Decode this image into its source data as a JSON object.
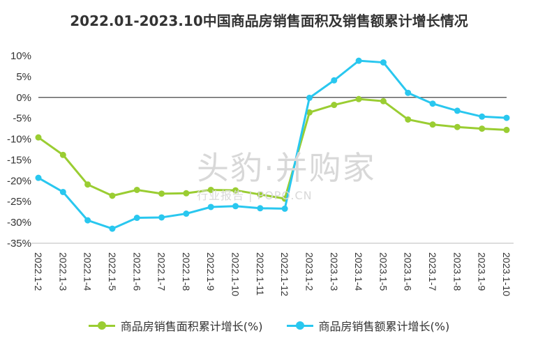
{
  "chart_data": {
    "type": "line",
    "title": "2022.01-2023.10中国商品房销售面积及销售额累计增长情况",
    "categories": [
      "2022.1-2",
      "2022.1-3",
      "2022.1-4",
      "2022.1-5",
      "2022.1-6",
      "2022.1-7",
      "2022.1-8",
      "2022.1-9",
      "2022.1-10",
      "2022.1-11",
      "2022.1-12",
      "2023.1-2",
      "2023.1-3",
      "2023.1-4",
      "2023.1-5",
      "2023.1-6",
      "2023.1-7",
      "2023.1-8",
      "2023.1-9",
      "2023.1-10"
    ],
    "series": [
      {
        "name": "商品房销售面积累计增长(%)",
        "color": "#9acd32",
        "values": [
          -9.6,
          -13.8,
          -20.9,
          -23.6,
          -22.2,
          -23.1,
          -23.0,
          -22.2,
          -22.3,
          -23.3,
          -24.3,
          -3.6,
          -1.8,
          -0.4,
          -0.9,
          -5.3,
          -6.5,
          -7.1,
          -7.5,
          -7.8
        ]
      },
      {
        "name": "商品房销售额累计增长(%)",
        "color": "#29c7ef",
        "values": [
          -19.3,
          -22.7,
          -29.5,
          -31.5,
          -28.9,
          -28.8,
          -27.9,
          -26.3,
          -26.1,
          -26.6,
          -26.7,
          -0.1,
          4.1,
          8.8,
          8.4,
          1.1,
          -1.5,
          -3.2,
          -4.6,
          -4.9
        ]
      }
    ],
    "ylim": [
      -35,
      10
    ],
    "yticks": [
      "10%",
      "5%",
      "0%",
      "-5%",
      "-10%",
      "-15%",
      "-20%",
      "-25%",
      "-30%",
      "-35%"
    ],
    "xlabel": "",
    "ylabel": "",
    "legend_position": "bottom",
    "grid": false
  },
  "watermark": {
    "main": "头豹·并购家",
    "sub": "行业报告 | POPO.CN"
  }
}
